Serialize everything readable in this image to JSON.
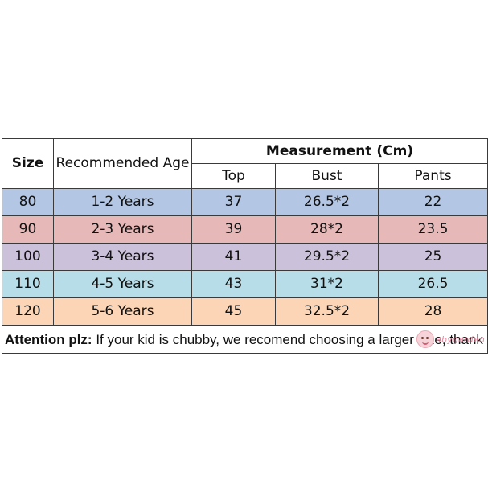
{
  "header": {
    "size": "Size",
    "age": "Recommended Age",
    "measurement": "Measurement (Cm)",
    "top": "Top",
    "bust": "Bust",
    "pants": "Pants"
  },
  "rows": [
    {
      "size": "80",
      "age": "1-2 Years",
      "top": "37",
      "bust": "26.5*2",
      "pants": "22",
      "color": "#b3c6e3"
    },
    {
      "size": "90",
      "age": "2-3 Years",
      "top": "39",
      "bust": "28*2",
      "pants": "23.5",
      "color": "#e6b8b7"
    },
    {
      "size": "100",
      "age": "3-4 Years",
      "top": "41",
      "bust": "29.5*2",
      "pants": "25",
      "color": "#ccc1da"
    },
    {
      "size": "110",
      "age": "4-5 Years",
      "top": "43",
      "bust": "31*2",
      "pants": "26.5",
      "color": "#b7dde8"
    },
    {
      "size": "120",
      "age": "5-6 Years",
      "top": "45",
      "bust": "32.5*2",
      "pants": "28",
      "color": "#fbd5b5"
    }
  ],
  "note": {
    "lead": "Attention plz:",
    "text": " If your kid is chubby, we recomend choosing a larger size, thank",
    "watermark": "abygarden"
  }
}
